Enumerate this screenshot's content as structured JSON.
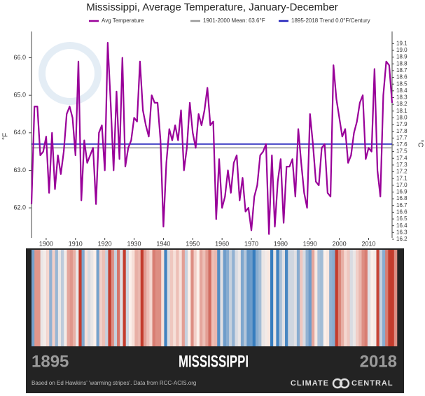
{
  "chart_data": {
    "type": "line",
    "title": "Mississippi, Average Temperature, January-December",
    "y_label": "°F",
    "y2_label": "°C",
    "legend": "top",
    "x": [
      1895,
      1896,
      1897,
      1898,
      1899,
      1900,
      1901,
      1902,
      1903,
      1904,
      1905,
      1906,
      1907,
      1908,
      1909,
      1910,
      1911,
      1912,
      1913,
      1914,
      1915,
      1916,
      1917,
      1918,
      1919,
      1920,
      1921,
      1922,
      1923,
      1924,
      1925,
      1926,
      1927,
      1928,
      1929,
      1930,
      1931,
      1932,
      1933,
      1934,
      1935,
      1936,
      1937,
      1938,
      1939,
      1940,
      1941,
      1942,
      1943,
      1944,
      1945,
      1946,
      1947,
      1948,
      1949,
      1950,
      1951,
      1952,
      1953,
      1954,
      1955,
      1956,
      1957,
      1958,
      1959,
      1960,
      1961,
      1962,
      1963,
      1964,
      1965,
      1966,
      1967,
      1968,
      1969,
      1970,
      1971,
      1972,
      1973,
      1974,
      1975,
      1976,
      1977,
      1978,
      1979,
      1980,
      1981,
      1982,
      1983,
      1984,
      1985,
      1986,
      1987,
      1988,
      1989,
      1990,
      1991,
      1992,
      1993,
      1994,
      1995,
      1996,
      1997,
      1998,
      1999,
      2000,
      2001,
      2002,
      2003,
      2004,
      2005,
      2006,
      2007,
      2008,
      2009,
      2010,
      2011,
      2012,
      2013,
      2014,
      2015,
      2016,
      2017,
      2018
    ],
    "series": [
      {
        "name": "Avg Temperature",
        "color": "#990099",
        "values": [
          62.1,
          64.7,
          64.7,
          63.4,
          63.5,
          63.9,
          62.4,
          64.0,
          62.5,
          63.4,
          62.9,
          63.5,
          64.5,
          64.7,
          64.4,
          63.4,
          65.9,
          62.2,
          63.8,
          63.2,
          63.4,
          63.6,
          62.1,
          64.0,
          64.2,
          63.0,
          66.4,
          64.8,
          63.0,
          65.1,
          63.3,
          66.0,
          63.1,
          63.6,
          63.8,
          64.4,
          64.3,
          65.9,
          64.6,
          64.2,
          63.9,
          65.0,
          64.8,
          64.8,
          63.8,
          61.5,
          63.2,
          64.1,
          63.8,
          64.2,
          63.8,
          64.6,
          63.0,
          63.6,
          64.8,
          64.0,
          63.6,
          64.5,
          64.2,
          64.6,
          65.2,
          64.2,
          64.3,
          61.7,
          63.3,
          62.0,
          62.3,
          63.0,
          62.4,
          63.2,
          63.4,
          62.2,
          62.8,
          61.9,
          62.0,
          61.4,
          62.3,
          62.6,
          63.4,
          63.5,
          63.7,
          61.3,
          63.4,
          61.5,
          62.7,
          63.3,
          61.6,
          63.1,
          63.1,
          63.3,
          62.3,
          64.1,
          63.2,
          62.4,
          62.0,
          64.5,
          63.7,
          62.7,
          62.6,
          63.6,
          63.7,
          62.4,
          62.3,
          65.8,
          64.9,
          64.4,
          63.9,
          64.1,
          63.2,
          63.4,
          64.0,
          64.3,
          64.8,
          65.0,
          63.3,
          63.6,
          63.5,
          65.7,
          63.0,
          62.3,
          65.0,
          65.9,
          65.8,
          64.8
        ]
      }
    ],
    "reference_lines": [
      {
        "name": "1901-2000 Mean: 63.6°F",
        "color": "#999999",
        "value": 63.6
      },
      {
        "name": "1895-2018 Trend 0.0°F/Century",
        "color": "#2222bb",
        "value": 63.7
      }
    ],
    "xlim": [
      1895,
      2018
    ],
    "xticks": [
      1900,
      1910,
      1920,
      1930,
      1940,
      1950,
      1960,
      1970,
      1980,
      1990,
      2000,
      2010
    ],
    "ylim": [
      61.2,
      66.7
    ],
    "yticks": [
      {
        "value": 62,
        "label": "62.0"
      },
      {
        "value": 63,
        "label": "63.0"
      },
      {
        "value": 64,
        "label": "64.0"
      },
      {
        "value": 65,
        "label": "65.0"
      },
      {
        "value": 66,
        "label": "66.0"
      }
    ],
    "y2lim": [
      16.22,
      19.28
    ],
    "y2ticks": [
      16.2,
      16.3,
      16.4,
      16.5,
      16.6,
      16.7,
      16.8,
      16.9,
      {
        "value": 17,
        "label": "17.0"
      },
      17.1,
      17.2,
      17.3,
      17.4,
      17.5,
      17.6,
      17.7,
      17.8,
      17.9,
      {
        "value": 18,
        "label": "18.0"
      },
      18.1,
      18.2,
      18.3,
      18.4,
      18.5,
      18.6,
      18.7,
      18.8,
      18.9,
      {
        "value": 19,
        "label": "19.0"
      },
      19.1
    ],
    "stripes": {
      "title": "MISSISSIPPI",
      "start_label": "1895",
      "end_label": "2018",
      "footer": "Based on Ed Hawkins' 'warming stripes'. Data from RCC-ACIS.org",
      "brand_left": "CLIMATE",
      "brand_right": "CENTRAL"
    }
  }
}
